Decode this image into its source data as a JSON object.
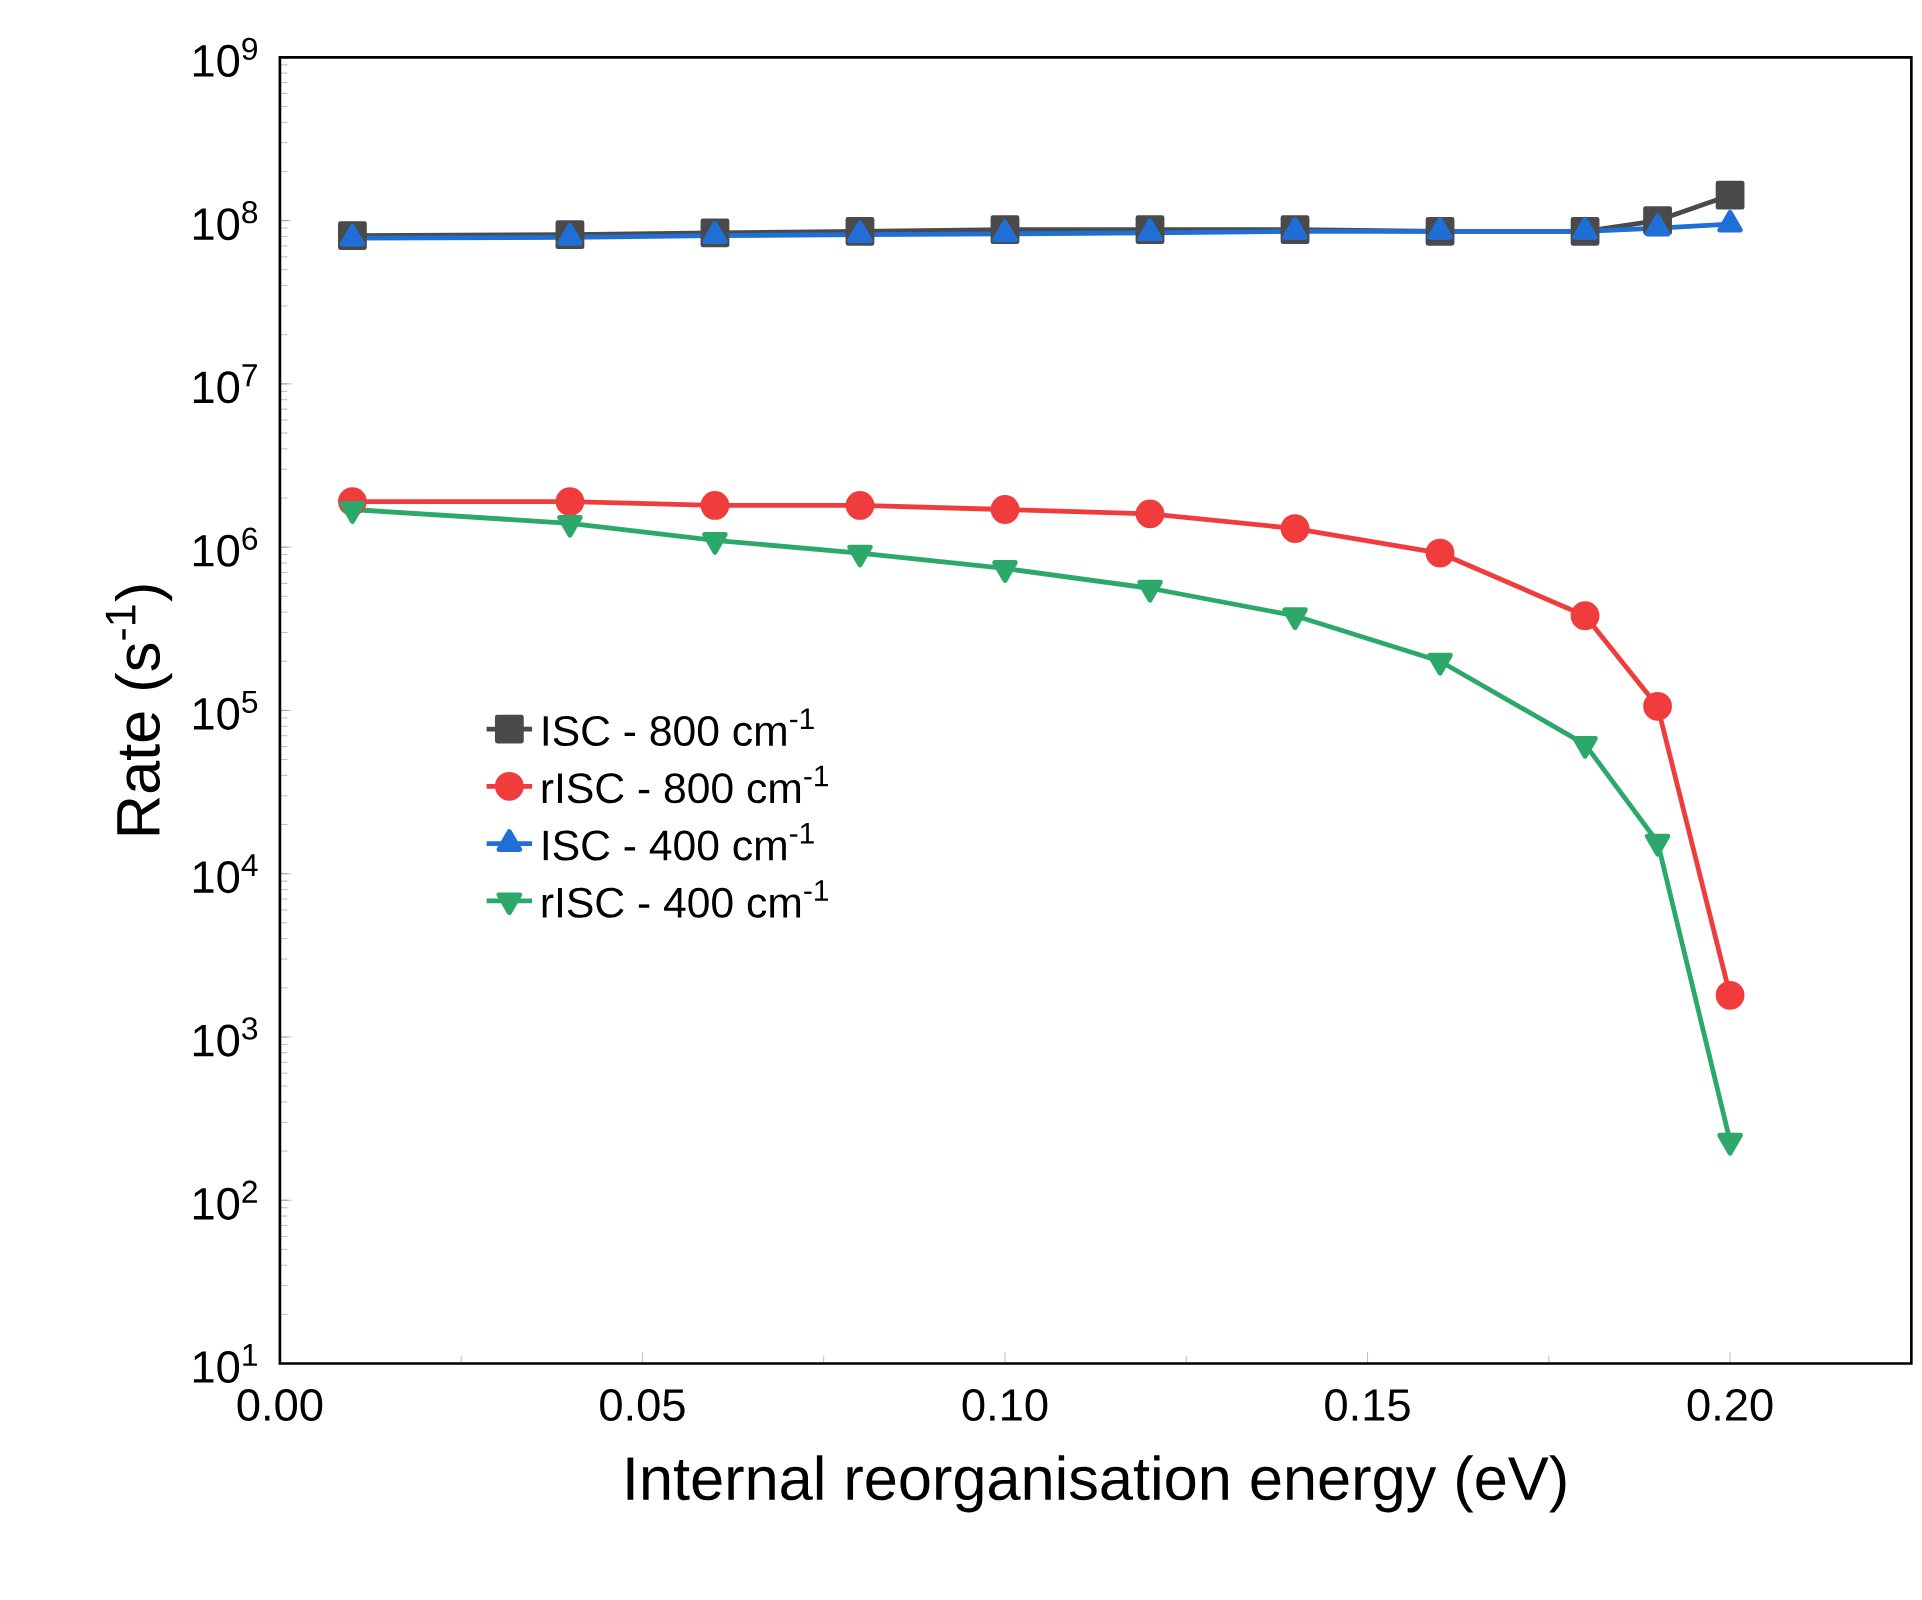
{
  "chart_data": {
    "type": "line",
    "xlabel": "Internal reorganisation energy (eV)",
    "ylabel": "Rate (s$^{-1}$)",
    "log": "y",
    "grid": false,
    "legend": "left",
    "x": [
      0.01,
      0.04,
      0.06,
      0.08,
      0.1,
      0.12,
      0.14,
      0.16,
      0.18,
      0.19,
      0.2
    ],
    "xlim": [
      0,
      0.225
    ],
    "xticks": [
      {
        "value": 0,
        "label": "0.00"
      },
      0.05,
      {
        "value": 0.1,
        "label": "0.10"
      },
      0.15,
      {
        "value": 0.2,
        "label": "0.20"
      }
    ],
    "ylim": [
      10,
      1000000000
    ],
    "yticks": [
      {
        "value": 10,
        "label": "10$^{1}$"
      },
      {
        "value": 100,
        "label": "10$^{2}$"
      },
      {
        "value": 1000,
        "label": "10$^{3}$"
      },
      {
        "value": 10000,
        "label": "10$^{4}$"
      },
      {
        "value": 100000,
        "label": "10$^{5}$"
      },
      {
        "value": 1000000,
        "label": "10$^{6}$"
      },
      {
        "value": 10000000,
        "label": "10$^{7}$"
      },
      {
        "value": 100000000,
        "label": "10$^{8}$"
      },
      {
        "value": 1000000000,
        "label": "10$^{9}$"
      }
    ],
    "series": [
      {
        "name": "ISC - 800 cm$^{-1}$",
        "color": "#4a4a4a",
        "marker": "square",
        "values": [
          81000000,
          82000000,
          84000000,
          86000000,
          88000000,
          88000000,
          88000000,
          86000000,
          86000000,
          100000000,
          143000000
        ]
      },
      {
        "name": "rISC - 800 cm$^{-1}$",
        "color": "#f03c3c",
        "marker": "circle",
        "values": [
          1900000,
          1900000,
          1800000,
          1800000,
          1700000,
          1600000,
          1300000,
          920000,
          380000,
          106000,
          1800
        ]
      },
      {
        "name": "ISC - 400 cm$^{-1}$",
        "color": "#1f6fd6",
        "marker": "triangle",
        "values": [
          78000000,
          79000000,
          81000000,
          82000000,
          83000000,
          84000000,
          86000000,
          86000000,
          86000000,
          90000000,
          95000000
        ]
      },
      {
        "name": "rISC - 400 cm$^{-1}$",
        "color": "#2ca86a",
        "marker": "triangle_down",
        "values": [
          1700000,
          1400000,
          1100000,
          920000,
          740000,
          560000,
          380000,
          200000,
          62000,
          15600,
          230
        ]
      }
    ]
  }
}
